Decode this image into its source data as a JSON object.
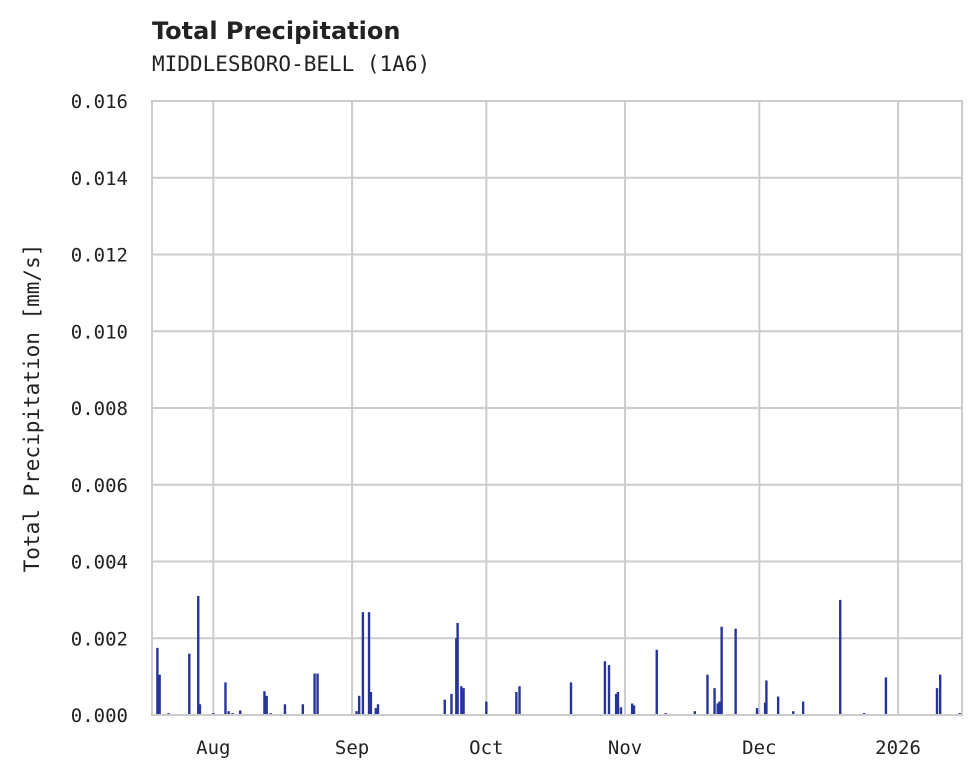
{
  "chart_data": {
    "type": "bar",
    "title": "Total Precipitation",
    "subtitle": "MIDDLESBORO-BELL (1A6)",
    "xlabel": "",
    "ylabel": "Total Precipitation [mm/s]",
    "ylim": [
      0,
      0.016
    ],
    "xlim": [
      "2025-07-18T07",
      "2026-01-15T07"
    ],
    "grid": true,
    "bar_color": "#27349a",
    "y_ticks": [
      "0.000",
      "0.002",
      "0.004",
      "0.006",
      "0.008",
      "0.010",
      "0.012",
      "0.014",
      "0.016"
    ],
    "x_ticks": [
      {
        "date": "2025-08-01",
        "label": "Aug"
      },
      {
        "date": "2025-09-01",
        "label": "Sep"
      },
      {
        "date": "2025-10-01",
        "label": "Oct"
      },
      {
        "date": "2025-11-01",
        "label": "Nov"
      },
      {
        "date": "2025-12-01",
        "label": "Dec"
      },
      {
        "date": "2026-01-01",
        "label": "2026"
      }
    ],
    "x": [
      "2025-07-19T12",
      "2025-07-20T00",
      "2025-07-22T00",
      "2025-07-26T15",
      "2025-07-28T15",
      "2025-07-29T00",
      "2025-08-01T00",
      "2025-08-03T17",
      "2025-08-04T10",
      "2025-08-05T07",
      "2025-08-07T00",
      "2025-08-12T10",
      "2025-08-12T22",
      "2025-08-13T19",
      "2025-08-17T00",
      "2025-08-21T00",
      "2025-08-23T15",
      "2025-08-24T07",
      "2025-09-02T00",
      "2025-09-02T14",
      "2025-09-03T10",
      "2025-09-04T19",
      "2025-09-05T05",
      "2025-09-06T07",
      "2025-09-06T19",
      "2025-09-21T17",
      "2025-09-23T05",
      "2025-09-24T07",
      "2025-09-24T14",
      "2025-09-25T10",
      "2025-09-25T22",
      "2025-10-01T00",
      "2025-10-07T17",
      "2025-10-08T10",
      "2025-10-19T22",
      "2025-10-27T12",
      "2025-10-28T10",
      "2025-10-30T00",
      "2025-10-30T10",
      "2025-10-31T02",
      "2025-11-02T14",
      "2025-11-03T00",
      "2025-11-08T02",
      "2025-11-10T02",
      "2025-11-16T14",
      "2025-11-19T10",
      "2025-11-21T00",
      "2025-11-21T17",
      "2025-11-22T02",
      "2025-11-22T14",
      "2025-11-25T17",
      "2025-11-30T12",
      "2025-12-02T07",
      "2025-12-02T14",
      "2025-12-05T05",
      "2025-12-08T14",
      "2025-12-10T19",
      "2025-12-19T02",
      "2025-12-24T10",
      "2025-12-29T07",
      "2026-01-09T17",
      "2026-01-10T10",
      "2026-01-14T19"
    ],
    "values": [
      0.00175,
      0.00105,
      5e-05,
      0.0016,
      0.0031,
      0.00028,
      5e-05,
      0.00085,
      0.0001,
      5e-05,
      0.00012,
      0.00062,
      0.0005,
      5e-05,
      0.00028,
      0.00028,
      0.00108,
      0.00108,
      0.0001,
      0.0005,
      0.00268,
      0.00268,
      0.0006,
      0.00018,
      0.00028,
      0.0004,
      0.00055,
      0.002,
      0.0024,
      0.00075,
      0.0007,
      0.00035,
      0.0006,
      0.00075,
      0.00085,
      0.0014,
      0.0013,
      0.00055,
      0.0006,
      0.0002,
      0.0003,
      0.00025,
      0.0017,
      5e-05,
      0.0001,
      0.00105,
      0.0007,
      0.0003,
      0.00035,
      0.0023,
      0.00225,
      0.00018,
      0.00032,
      0.0009,
      0.00048,
      0.0001,
      0.00035,
      0.003,
      5e-05,
      0.00098,
      0.0007,
      0.00105,
      5e-05
    ]
  }
}
